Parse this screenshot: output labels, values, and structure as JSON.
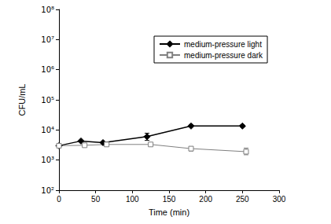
{
  "chart_data": {
    "type": "line",
    "x_label": "Time (min)",
    "y_label": "CFU/mL",
    "log": "y",
    "grid": false,
    "legend": "upper right",
    "xlim": [
      0,
      300
    ],
    "xticks": [
      0,
      50,
      100,
      150,
      200,
      250,
      300
    ],
    "ylim": [
      100,
      100000000
    ],
    "yticks": [
      {
        "value": 100,
        "label": "10²"
      },
      {
        "value": 1000,
        "label": "10³"
      },
      {
        "value": 10000,
        "label": "10⁴"
      },
      {
        "value": 100000,
        "label": "10⁵"
      },
      {
        "value": 1000000,
        "label": "10⁶"
      },
      {
        "value": 10000000,
        "label": "10⁷"
      },
      {
        "value": 100000000,
        "label": "10⁸"
      }
    ],
    "series": [
      {
        "name": "medium-pressure light",
        "color": "#000000",
        "marker": "diamond",
        "line_style": "solid",
        "x": [
          0,
          30,
          60,
          120,
          180,
          250
        ],
        "values": [
          3000,
          4300,
          3800,
          6000,
          13500,
          13500
        ],
        "error_bars": [
          null,
          null,
          null,
          [
            4500,
            7800
          ],
          [
            13000,
            14500
          ],
          [
            12500,
            14500
          ]
        ]
      },
      {
        "name": "medium-pressure dark",
        "color": "#808080",
        "marker": "open_square",
        "line_style": "solid",
        "x": [
          0,
          35,
          65,
          125,
          180,
          255
        ],
        "values": [
          3000,
          3100,
          3300,
          3300,
          2400,
          1900
        ],
        "error_bars": [
          null,
          null,
          null,
          [
            3000,
            3600
          ],
          [
            2000,
            2800
          ],
          [
            1500,
            2500
          ]
        ]
      }
    ]
  }
}
